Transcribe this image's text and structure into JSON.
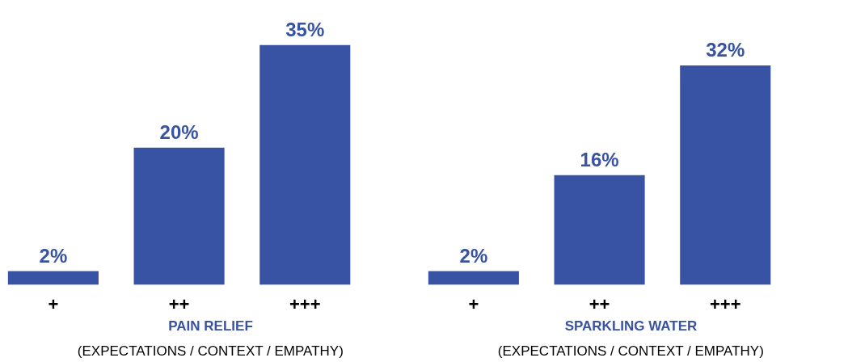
{
  "chart_data": [
    {
      "type": "bar",
      "title": "PAIN RELIEF",
      "subtitle": "(EXPECTATIONS / CONTEXT / EMPATHY)",
      "categories": [
        "+",
        "++",
        "+++"
      ],
      "values": [
        2,
        20,
        35
      ],
      "value_labels": [
        "2%",
        "20%",
        "35%"
      ],
      "color": "#3953a4"
    },
    {
      "type": "bar",
      "title": "SPARKLING WATER",
      "subtitle": "(EXPECTATIONS / CONTEXT / EMPATHY)",
      "categories": [
        "+",
        "++",
        "+++"
      ],
      "values": [
        2,
        16,
        32
      ],
      "value_labels": [
        "2%",
        "16%",
        "32%"
      ],
      "color": "#3953a4"
    }
  ]
}
